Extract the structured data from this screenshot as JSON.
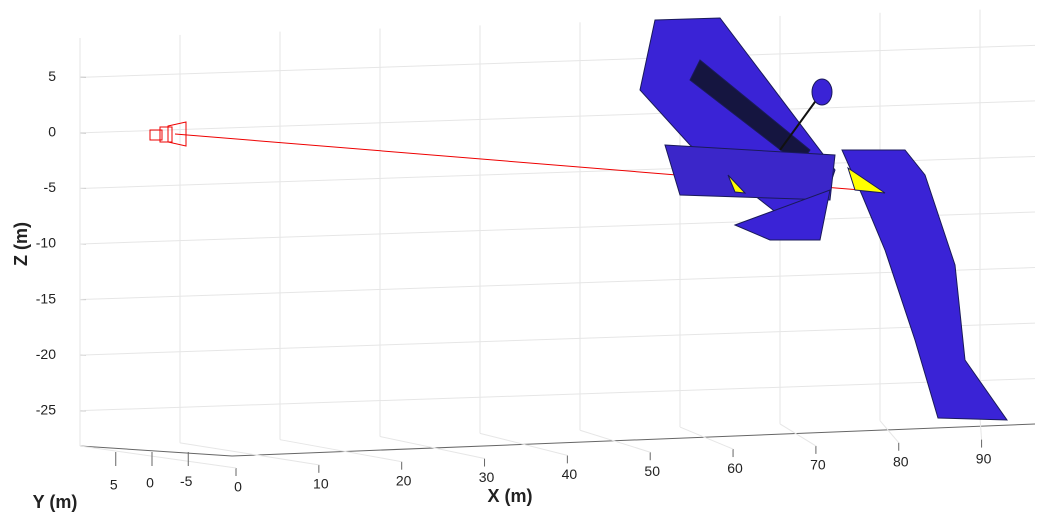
{
  "chart_data": {
    "type": "line3d",
    "xlabel": "X (m)",
    "ylabel": "Y (m)",
    "zlabel": "Z (m)",
    "xlim": [
      0,
      95
    ],
    "ylim": [
      -8,
      8
    ],
    "zlim": [
      -28,
      8
    ],
    "xticks": [
      0,
      10,
      20,
      30,
      40,
      50,
      60,
      70,
      80,
      90
    ],
    "yticks": [
      5,
      0,
      -5
    ],
    "zticks": [
      5,
      0,
      -5,
      -10,
      -15,
      -20,
      -25
    ],
    "grid": true
  }
}
